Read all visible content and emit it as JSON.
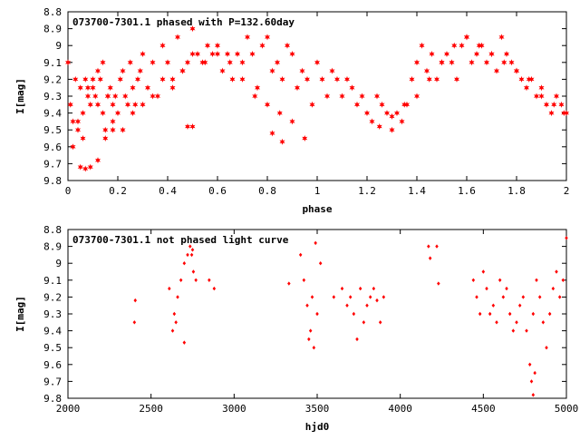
{
  "chart_data": [
    {
      "type": "scatter",
      "title": "073700-7301.1 phased with P=132.60day",
      "xlabel": "phase",
      "ylabel": "I[mag]",
      "xlim": [
        0,
        2
      ],
      "ylim": [
        9.8,
        8.8
      ],
      "y_inverted": true,
      "grid": false,
      "marker": "filled-star",
      "color": "#ff0000",
      "xticks": [
        0,
        0.2,
        0.4,
        0.6,
        0.8,
        1,
        1.2,
        1.4,
        1.6,
        1.8,
        2
      ],
      "xtick_labels": [
        "0",
        "0.2",
        "0.4",
        "0.6",
        "0.8",
        "1",
        "1.2",
        "1.4",
        "1.6",
        "1.8",
        "2"
      ],
      "yticks": [
        8.8,
        8.9,
        9.0,
        9.1,
        9.2,
        9.3,
        9.4,
        9.5,
        9.6,
        9.7,
        9.8
      ],
      "ytick_labels": [
        "8.8",
        "8.9",
        "9",
        "9.1",
        "9.2",
        "9.3",
        "9.4",
        "9.5",
        "9.6",
        "9.7",
        "9.8"
      ],
      "series": [
        {
          "x": [
            0.0,
            0.01,
            0.02,
            0.03,
            0.04,
            0.05,
            0.06,
            0.07,
            0.08,
            0.09,
            0.1,
            0.11,
            0.12,
            0.13,
            0.14,
            0.15,
            0.16,
            0.17,
            0.18,
            0.19,
            0.2,
            0.21,
            0.22,
            0.23,
            0.24,
            0.25,
            0.26,
            0.27,
            0.28,
            0.29,
            0.3,
            0.32,
            0.34,
            0.36,
            0.38,
            0.4,
            0.42,
            0.44,
            0.46,
            0.48,
            0.5,
            0.52,
            0.54,
            0.56,
            0.58,
            0.6,
            0.62,
            0.64,
            0.66,
            0.68,
            0.7,
            0.72,
            0.74,
            0.76,
            0.78,
            0.8,
            0.82,
            0.84,
            0.86,
            0.88,
            0.9,
            0.92,
            0.94,
            0.96,
            0.98,
            1.0,
            1.02,
            1.04,
            1.06,
            1.08,
            1.1,
            1.12,
            1.14,
            1.16,
            1.18,
            1.2,
            1.22,
            1.24,
            1.26,
            1.28,
            1.3,
            1.32,
            1.34,
            1.36,
            1.38,
            1.4,
            1.42,
            1.44,
            1.46,
            1.48,
            1.5,
            1.52,
            1.54,
            1.56,
            1.58,
            1.6,
            1.62,
            1.64,
            1.66,
            1.68,
            1.7,
            1.72,
            1.74,
            1.76,
            1.78,
            1.8,
            1.82,
            1.84,
            1.86,
            1.88,
            1.9,
            1.92,
            1.94,
            1.96,
            1.98,
            2.0,
            0.02,
            0.04,
            0.06,
            0.08,
            0.1,
            0.12,
            0.14,
            0.16,
            0.18,
            0.22,
            0.26,
            0.3,
            0.34,
            0.38,
            0.42,
            0.46,
            0.5,
            0.55,
            0.6,
            0.65,
            0.7,
            0.75,
            0.8,
            0.85,
            0.9,
            0.95,
            0.05,
            0.07,
            0.09,
            0.12,
            0.15,
            0.18,
            0.48,
            0.5,
            0.82,
            0.86,
            1.25,
            1.3,
            1.35,
            1.4,
            1.45,
            1.5,
            1.55,
            1.6,
            1.65,
            1.7,
            1.75,
            1.8,
            1.85,
            1.9,
            1.95,
            1.99
          ],
          "y": [
            9.1,
            9.35,
            9.45,
            9.2,
            9.5,
            9.25,
            9.4,
            9.2,
            9.3,
            9.35,
            9.25,
            9.3,
            9.35,
            9.2,
            9.4,
            9.5,
            9.3,
            9.25,
            9.35,
            9.3,
            9.4,
            9.2,
            9.15,
            9.3,
            9.35,
            9.1,
            9.25,
            9.35,
            9.2,
            9.15,
            9.05,
            9.25,
            9.1,
            9.3,
            9.0,
            9.1,
            9.2,
            8.95,
            9.15,
            9.1,
            8.9,
            9.05,
            9.1,
            9.0,
            9.05,
            9.0,
            9.15,
            9.05,
            9.2,
            9.05,
            9.1,
            8.95,
            9.05,
            9.25,
            9.0,
            8.95,
            9.15,
            9.1,
            9.2,
            9.0,
            9.05,
            9.25,
            9.15,
            9.2,
            9.35,
            9.1,
            9.2,
            9.3,
            9.15,
            9.2,
            9.3,
            9.2,
            9.25,
            9.35,
            9.3,
            9.4,
            9.45,
            9.3,
            9.35,
            9.4,
            9.5,
            9.4,
            9.45,
            9.35,
            9.2,
            9.1,
            9.0,
            9.15,
            9.05,
            9.2,
            9.1,
            9.05,
            9.1,
            9.2,
            9.0,
            8.95,
            9.1,
            9.05,
            9.0,
            9.1,
            9.05,
            9.15,
            8.95,
            9.05,
            9.1,
            9.15,
            9.2,
            9.25,
            9.2,
            9.3,
            9.25,
            9.35,
            9.4,
            9.3,
            9.35,
            9.4,
            9.6,
            9.45,
            9.55,
            9.25,
            9.2,
            9.15,
            9.1,
            9.3,
            9.45,
            9.5,
            9.4,
            9.35,
            9.3,
            9.2,
            9.25,
            9.15,
            9.05,
            9.1,
            9.05,
            9.1,
            9.2,
            9.3,
            9.35,
            9.4,
            9.45,
            9.55,
            9.72,
            9.73,
            9.72,
            9.68,
            9.55,
            9.5,
            9.48,
            9.48,
            9.52,
            9.57,
            9.48,
            9.42,
            9.35,
            9.3,
            9.2,
            9.1,
            9.0,
            8.95,
            9.0,
            9.05,
            9.1,
            9.15,
            9.2,
            9.3,
            9.35,
            9.4
          ]
        }
      ]
    },
    {
      "type": "scatter",
      "title": "073700-7301.1 not phased light curve",
      "xlabel": "hjd0",
      "ylabel": "I[mag]",
      "xlim": [
        2000,
        5000
      ],
      "ylim": [
        9.8,
        8.8
      ],
      "y_inverted": true,
      "grid": false,
      "marker": "filled-diamond",
      "color": "#ff0000",
      "xticks": [
        2000,
        2500,
        3000,
        3500,
        4000,
        4500,
        5000
      ],
      "xtick_labels": [
        "2000",
        "2500",
        "3000",
        "3500",
        "4000",
        "4500",
        "5000"
      ],
      "yticks": [
        8.8,
        8.9,
        9.0,
        9.1,
        9.2,
        9.3,
        9.4,
        9.5,
        9.6,
        9.7,
        9.8
      ],
      "ytick_labels": [
        "8.8",
        "8.9",
        "9",
        "9.1",
        "9.2",
        "9.3",
        "9.4",
        "9.5",
        "9.6",
        "9.7",
        "9.8"
      ],
      "series": [
        {
          "x": [
            2400,
            2405,
            2610,
            2630,
            2640,
            2660,
            2680,
            2700,
            2720,
            2735,
            2745,
            2755,
            2770,
            2850,
            2880,
            2650,
            2700,
            2750,
            3330,
            3400,
            3420,
            3440,
            3460,
            3480,
            3500,
            3520,
            3450,
            3470,
            3490,
            3600,
            3650,
            3680,
            3700,
            3720,
            3740,
            3760,
            3780,
            3800,
            3820,
            3840,
            3860,
            3880,
            3900,
            4170,
            4180,
            4220,
            4230,
            4440,
            4460,
            4480,
            4500,
            4520,
            4540,
            4560,
            4580,
            4600,
            4620,
            4640,
            4660,
            4680,
            4700,
            4720,
            4740,
            4760,
            4780,
            4800,
            4820,
            4840,
            4860,
            4880,
            4900,
            4920,
            4940,
            4960,
            4980,
            5000,
            4790,
            4800,
            4810
          ],
          "y": [
            9.35,
            9.22,
            9.15,
            9.4,
            9.3,
            9.2,
            9.1,
            9.0,
            8.95,
            8.9,
            8.95,
            9.05,
            9.1,
            9.1,
            9.15,
            9.35,
            9.47,
            8.92,
            9.12,
            8.95,
            9.1,
            9.25,
            9.4,
            9.5,
            9.3,
            9.0,
            9.45,
            9.2,
            8.88,
            9.2,
            9.15,
            9.25,
            9.2,
            9.3,
            9.45,
            9.15,
            9.35,
            9.25,
            9.2,
            9.15,
            9.22,
            9.35,
            9.2,
            8.9,
            8.97,
            8.9,
            9.12,
            9.1,
            9.2,
            9.3,
            9.05,
            9.15,
            9.3,
            9.25,
            9.35,
            9.1,
            9.2,
            9.15,
            9.3,
            9.4,
            9.35,
            9.25,
            9.2,
            9.4,
            9.6,
            9.3,
            9.1,
            9.2,
            9.35,
            9.5,
            9.3,
            9.15,
            9.05,
            9.2,
            9.1,
            8.85,
            9.7,
            9.78,
            9.65
          ]
        }
      ]
    }
  ]
}
